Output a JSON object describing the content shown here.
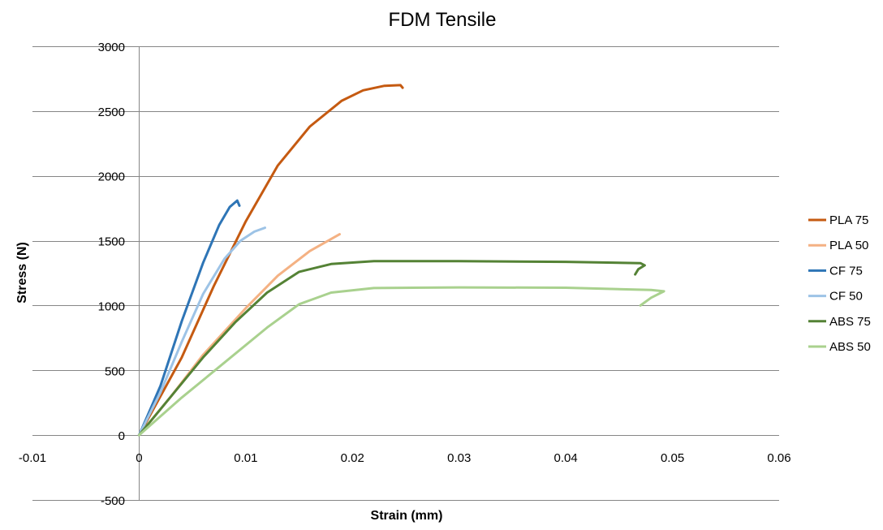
{
  "chart_data": {
    "type": "line",
    "title": "FDM Tensile",
    "xlabel": "Strain (mm)",
    "ylabel": "Stress (N)",
    "xlim": [
      -0.01,
      0.06
    ],
    "ylim": [
      -500,
      3000
    ],
    "x_ticks": [
      -0.01,
      0,
      0.01,
      0.02,
      0.03,
      0.04,
      0.05,
      0.06
    ],
    "x_tick_labels": [
      "-0.01",
      "0",
      "0.01",
      "0.02",
      "0.03",
      "0.04",
      "0.05",
      "0.06"
    ],
    "y_ticks": [
      -500,
      0,
      500,
      1000,
      1500,
      2000,
      2500,
      3000
    ],
    "y_tick_labels": [
      "-500",
      "0",
      "500",
      "1000",
      "1500",
      "2000",
      "2500",
      "3000"
    ],
    "grid": true,
    "legend_position": "right",
    "series": [
      {
        "name": "PLA 75",
        "color": "#c55a11",
        "points": [
          [
            0,
            0
          ],
          [
            0.004,
            600
          ],
          [
            0.007,
            1150
          ],
          [
            0.01,
            1650
          ],
          [
            0.013,
            2080
          ],
          [
            0.016,
            2380
          ],
          [
            0.019,
            2580
          ],
          [
            0.021,
            2660
          ],
          [
            0.023,
            2695
          ],
          [
            0.0245,
            2700
          ],
          [
            0.0247,
            2680
          ]
        ]
      },
      {
        "name": "PLA 50",
        "color": "#f4b183",
        "points": [
          [
            0,
            0
          ],
          [
            0.003,
            300
          ],
          [
            0.006,
            620
          ],
          [
            0.01,
            980
          ],
          [
            0.013,
            1230
          ],
          [
            0.016,
            1420
          ],
          [
            0.0188,
            1550
          ]
        ]
      },
      {
        "name": "CF 75",
        "color": "#2e75b6",
        "points": [
          [
            0,
            0
          ],
          [
            0.002,
            380
          ],
          [
            0.004,
            880
          ],
          [
            0.006,
            1330
          ],
          [
            0.0075,
            1620
          ],
          [
            0.0085,
            1760
          ],
          [
            0.0092,
            1810
          ],
          [
            0.0094,
            1770
          ]
        ]
      },
      {
        "name": "CF 50",
        "color": "#9dc3e6",
        "points": [
          [
            0,
            0
          ],
          [
            0.002,
            330
          ],
          [
            0.004,
            720
          ],
          [
            0.006,
            1090
          ],
          [
            0.008,
            1360
          ],
          [
            0.0095,
            1500
          ],
          [
            0.0108,
            1570
          ],
          [
            0.0118,
            1600
          ]
        ]
      },
      {
        "name": "ABS 75",
        "color": "#548235",
        "points": [
          [
            0,
            0
          ],
          [
            0.003,
            300
          ],
          [
            0.006,
            600
          ],
          [
            0.009,
            870
          ],
          [
            0.012,
            1100
          ],
          [
            0.015,
            1260
          ],
          [
            0.018,
            1320
          ],
          [
            0.022,
            1342
          ],
          [
            0.03,
            1342
          ],
          [
            0.04,
            1337
          ],
          [
            0.047,
            1327
          ],
          [
            0.0474,
            1310
          ],
          [
            0.0468,
            1280
          ],
          [
            0.0465,
            1240
          ]
        ]
      },
      {
        "name": "ABS 50",
        "color": "#a9d18e",
        "points": [
          [
            0,
            0
          ],
          [
            0.004,
            290
          ],
          [
            0.008,
            560
          ],
          [
            0.012,
            830
          ],
          [
            0.015,
            1010
          ],
          [
            0.018,
            1100
          ],
          [
            0.022,
            1135
          ],
          [
            0.03,
            1140
          ],
          [
            0.04,
            1137
          ],
          [
            0.048,
            1120
          ],
          [
            0.0492,
            1110
          ],
          [
            0.048,
            1060
          ],
          [
            0.047,
            1000
          ]
        ]
      }
    ]
  }
}
